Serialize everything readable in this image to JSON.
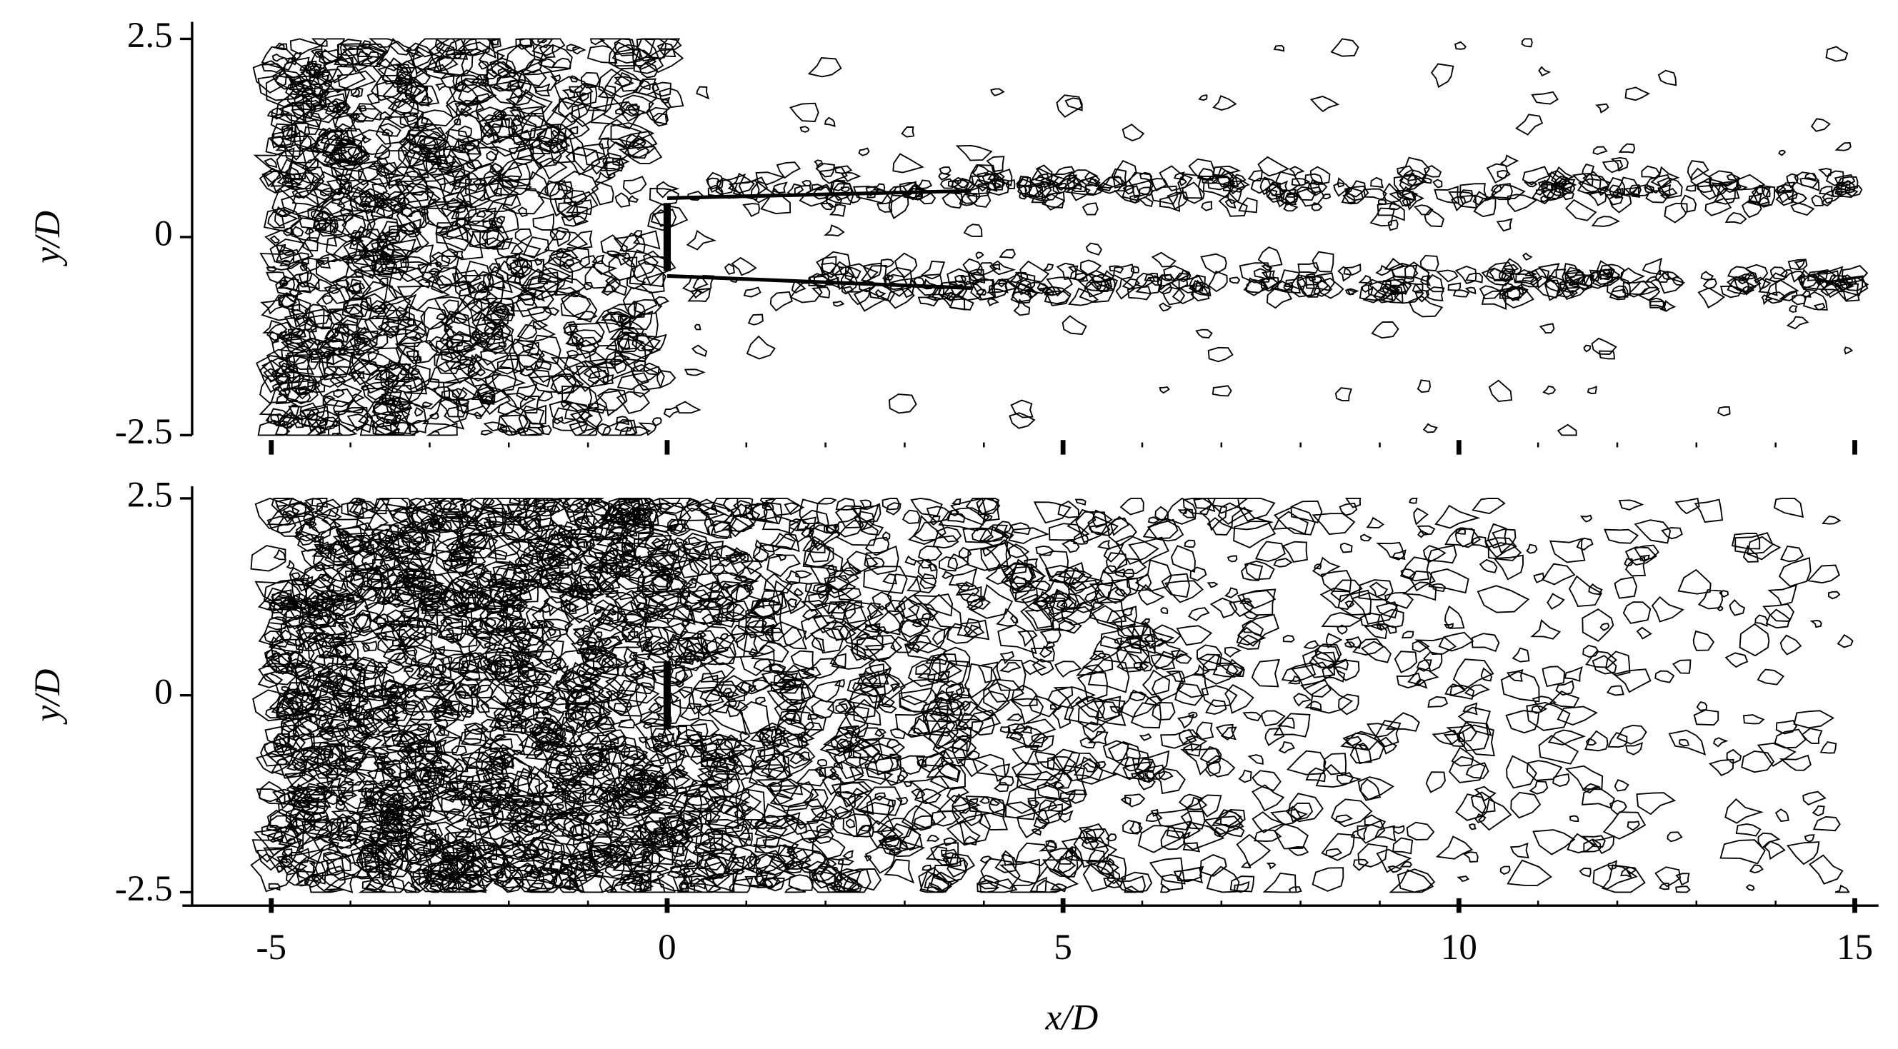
{
  "chart_data": [
    {
      "type": "contour",
      "ylabel": "y/D",
      "xlim": [
        -6,
        15.3
      ],
      "ylim": [
        -2.5,
        2.5
      ],
      "xticks": [
        -5,
        0,
        5,
        10,
        15
      ],
      "minor_xticks": [
        -4,
        -3,
        -2,
        -1,
        1,
        2,
        3,
        4,
        6,
        7,
        8,
        9,
        11,
        12,
        13,
        14
      ],
      "yticks": [
        -2.5,
        0,
        2.5
      ],
      "show_xtick_labels": false,
      "color": "#000000"
    },
    {
      "type": "contour",
      "ylabel": "y/D",
      "xlabel": "x/D",
      "xlim": [
        -6,
        15.3
      ],
      "ylim": [
        -2.5,
        2.5
      ],
      "xticks": [
        -5,
        0,
        5,
        10,
        15
      ],
      "minor_xticks": [
        -4,
        -3,
        -2,
        -1,
        1,
        2,
        3,
        4,
        6,
        7,
        8,
        9,
        11,
        12,
        13,
        14
      ],
      "yticks": [
        -2.5,
        0,
        2.5
      ],
      "show_xtick_labels": true,
      "color": "#000000"
    }
  ]
}
